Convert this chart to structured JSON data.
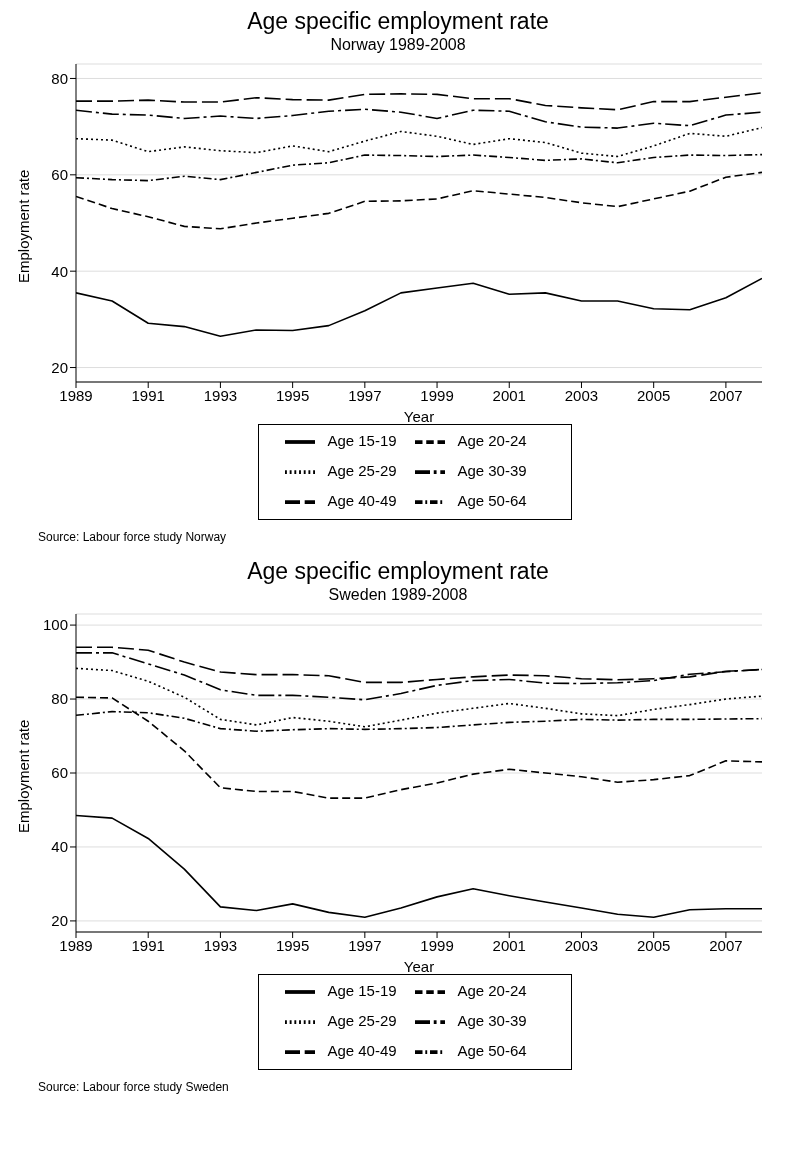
{
  "chart_data": [
    {
      "type": "line",
      "title": "Age specific employment rate",
      "subtitle": "Norway 1989-2008",
      "xlabel": "Year",
      "ylabel": "Employment rate",
      "annotations": [
        "Source: Labour force study Norway"
      ],
      "x": [
        1989,
        1990,
        1991,
        1992,
        1993,
        1994,
        1995,
        1996,
        1997,
        1998,
        1999,
        2000,
        2001,
        2002,
        2003,
        2004,
        2005,
        2006,
        2007,
        2008
      ],
      "xlim": [
        1989,
        2008
      ],
      "xticks": [
        1989,
        1991,
        1993,
        1995,
        1997,
        1999,
        2001,
        2003,
        2005,
        2007
      ],
      "ylim": [
        17,
        83
      ],
      "yticks": [
        20,
        40,
        60,
        80
      ],
      "grid": "y",
      "legend": "bottom",
      "marker": "none",
      "series": [
        {
          "name": "Age 15-19",
          "color": "#000000",
          "line_style": "solid",
          "values": [
            35.5,
            33.8,
            29.2,
            28.5,
            26.5,
            27.8,
            27.7,
            28.7,
            31.8,
            35.5,
            36.5,
            37.5,
            35.2,
            35.5,
            33.8,
            33.8,
            32.2,
            32,
            34.5,
            38.5
          ]
        },
        {
          "name": "Age 20-24",
          "color": "#000000",
          "line_style": "dashed",
          "values": [
            55.5,
            53,
            51.3,
            49.3,
            48.8,
            50,
            51,
            52,
            54.5,
            54.6,
            55,
            56.7,
            56,
            55.3,
            54.2,
            53.4,
            55,
            56.6,
            59.5,
            60.5
          ]
        },
        {
          "name": "Age 25-29",
          "color": "#000000",
          "line_style": "dotted",
          "values": [
            67.5,
            67.2,
            64.8,
            65.8,
            65,
            64.6,
            66,
            64.8,
            67,
            69,
            68,
            66.3,
            67.5,
            66.7,
            64.5,
            63.8,
            66,
            68.6,
            68,
            69.8
          ]
        },
        {
          "name": "Age 30-39",
          "color": "#000000",
          "line_style": "longdashdot",
          "values": [
            73.4,
            72.6,
            72.4,
            71.7,
            72.2,
            71.7,
            72.3,
            73.2,
            73.6,
            73,
            71.7,
            73.4,
            73.2,
            71,
            69.9,
            69.7,
            70.7,
            70.2,
            72.4,
            73
          ]
        },
        {
          "name": "Age 40-49",
          "color": "#000000",
          "line_style": "longdash",
          "values": [
            75.3,
            75.3,
            75.5,
            75.1,
            75.1,
            76,
            75.6,
            75.5,
            76.7,
            76.8,
            76.7,
            75.8,
            75.8,
            74.4,
            73.9,
            73.5,
            75.2,
            75.2,
            76.1,
            77
          ]
        },
        {
          "name": "Age 50-64",
          "color": "#000000",
          "line_style": "dashdot",
          "values": [
            59.4,
            59,
            58.8,
            59.7,
            59,
            60.5,
            62,
            62.5,
            64.1,
            64,
            63.8,
            64.1,
            63.6,
            63,
            63.3,
            62.5,
            63.6,
            64.1,
            64,
            64.2
          ]
        }
      ]
    },
    {
      "type": "line",
      "title": "Age specific employment rate",
      "subtitle": "Sweden 1989-2008",
      "xlabel": "Year",
      "ylabel": "Employment rate",
      "annotations": [
        "Source: Labour force study Sweden"
      ],
      "x": [
        1989,
        1990,
        1991,
        1992,
        1993,
        1994,
        1995,
        1996,
        1997,
        1998,
        1999,
        2000,
        2001,
        2002,
        2003,
        2004,
        2005,
        2006,
        2007,
        2008
      ],
      "xlim": [
        1989,
        2008
      ],
      "xticks": [
        1989,
        1991,
        1993,
        1995,
        1997,
        1999,
        2001,
        2003,
        2005,
        2007
      ],
      "ylim": [
        17,
        103
      ],
      "yticks": [
        20,
        40,
        60,
        80,
        100
      ],
      "grid": "y",
      "legend": "bottom",
      "marker": "none",
      "series": [
        {
          "name": "Age 15-19",
          "color": "#000000",
          "line_style": "solid",
          "values": [
            48.5,
            47.8,
            42.3,
            34,
            23.8,
            22.8,
            24.6,
            22.3,
            21,
            23.5,
            26.5,
            28.7,
            26.8,
            25.1,
            23.5,
            21.8,
            21,
            23,
            23.3,
            23.3
          ]
        },
        {
          "name": "Age 20-24",
          "color": "#000000",
          "line_style": "dashed",
          "values": [
            80.5,
            80.3,
            74,
            66,
            56,
            55,
            55,
            53.2,
            53.2,
            55.5,
            57.3,
            59.7,
            61,
            60,
            59,
            57.5,
            58.2,
            59.3,
            63.3,
            63
          ]
        },
        {
          "name": "Age 25-29",
          "color": "#000000",
          "line_style": "dotted",
          "values": [
            88.3,
            87.7,
            84.8,
            80.5,
            74.5,
            73,
            75,
            74,
            72.5,
            74.3,
            76.2,
            77.5,
            78.8,
            77.5,
            76,
            75.5,
            77.2,
            78.5,
            80,
            80.8
          ]
        },
        {
          "name": "Age 30-39",
          "color": "#000000",
          "line_style": "longdashdot",
          "values": [
            92.5,
            92.5,
            89.5,
            86.5,
            82.5,
            81,
            81,
            80.5,
            79.8,
            81.5,
            83.7,
            85,
            85.3,
            84.3,
            84.2,
            84.4,
            85,
            86.7,
            87.4,
            88
          ]
        },
        {
          "name": "Age 40-49",
          "color": "#000000",
          "line_style": "longdash",
          "values": [
            94,
            94,
            93.2,
            90,
            87.3,
            86.6,
            86.6,
            86.3,
            84.5,
            84.5,
            85.3,
            86,
            86.5,
            86.3,
            85.5,
            85.2,
            85.5,
            86,
            87.5,
            88
          ]
        },
        {
          "name": "Age 50-64",
          "color": "#000000",
          "line_style": "dashdot",
          "values": [
            75.6,
            76.6,
            76.3,
            74.8,
            72,
            71.3,
            71.7,
            72,
            71.8,
            72,
            72.3,
            73,
            73.7,
            74,
            74.5,
            74.3,
            74.5,
            74.5,
            74.6,
            74.7
          ]
        }
      ]
    }
  ]
}
